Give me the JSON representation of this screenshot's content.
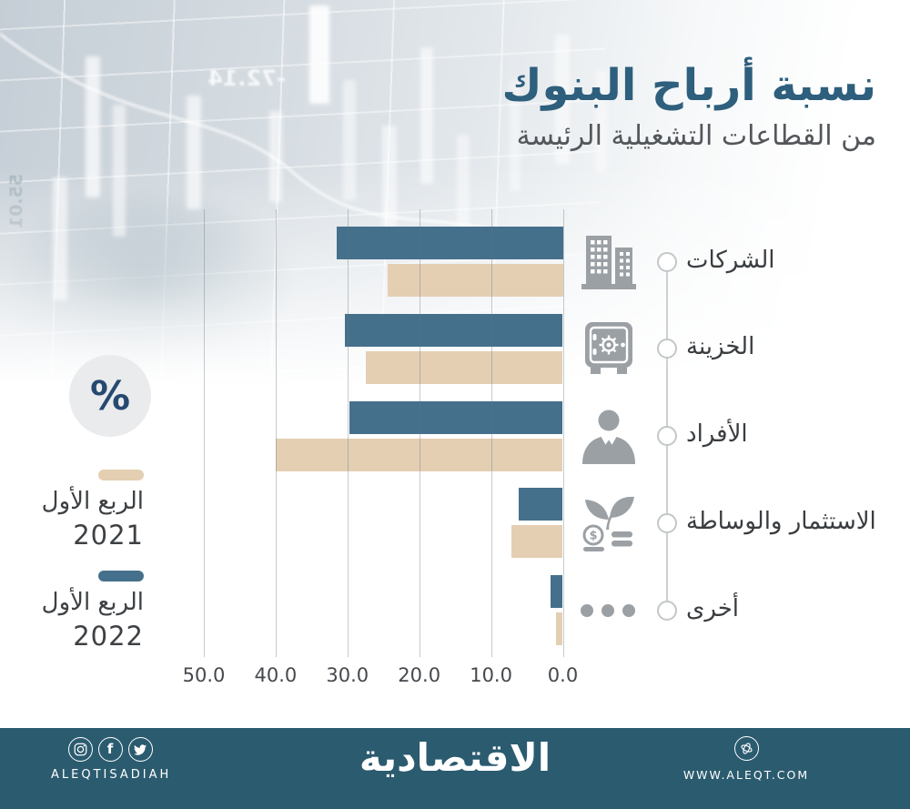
{
  "title": {
    "main": "نسبة أرباح البنوك",
    "subtitle": "من القطاعات التشغيلية الرئيسة"
  },
  "unit_badge": "%",
  "legend": [
    {
      "line1": "الربع الأول",
      "year": "2021",
      "color": "#e4cfb3"
    },
    {
      "line1": "الربع الأول",
      "year": "2022",
      "color": "#45708c"
    }
  ],
  "chart_data": {
    "type": "bar",
    "orientation": "horizontal",
    "value_axis_direction": "zero at right, values increase to the left (RTL)",
    "title": "نسبة أرباح البنوك من القطاعات التشغيلية الرئيسة",
    "unit": "%",
    "categories": [
      "الشركات",
      "الخزينة",
      "الأفراد",
      "الاستثمار والوساطة",
      "أخرى"
    ],
    "category_icons": [
      "building-icon",
      "safe-icon",
      "person-icon",
      "investment-icon",
      "dots-icon"
    ],
    "series": [
      {
        "name": "الربع الأول 2022",
        "color": "#45708c",
        "values": [
          31.5,
          30.4,
          29.7,
          6.1,
          1.7
        ]
      },
      {
        "name": "الربع الأول 2021",
        "color": "#e4cfb3",
        "values": [
          24.4,
          27.4,
          40.0,
          7.2,
          1.0
        ]
      }
    ],
    "x_ticks": [
      {
        "label": "50.0",
        "value": 50
      },
      {
        "label": "40.0",
        "value": 40
      },
      {
        "label": "30.0",
        "value": 30
      },
      {
        "label": "20.0",
        "value": 20
      },
      {
        "label": "10.0",
        "value": 10
      },
      {
        "label": "0.0",
        "value": 0
      }
    ],
    "xlim": [
      0,
      50
    ],
    "grid": true,
    "legend_position": "left"
  },
  "background": {
    "decor_numbers": [
      "-72.14",
      "55.01"
    ]
  },
  "footer": {
    "social_handle": "ALEQTISADIAH",
    "social_icons": [
      "instagram-icon",
      "facebook-icon",
      "twitter-icon"
    ],
    "logo": "الاقتصادية",
    "website": "WWW.ALEQT.COM",
    "bg_color": "#2b5b6f"
  }
}
